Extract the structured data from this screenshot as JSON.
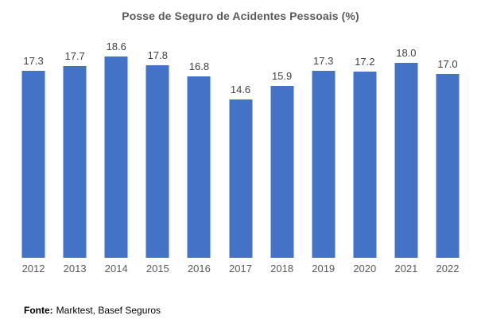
{
  "chart_data": {
    "type": "bar",
    "title": "Posse de Seguro de Acidentes Pessoais (%)",
    "categories": [
      "2012",
      "2013",
      "2014",
      "2015",
      "2016",
      "2017",
      "2018",
      "2019",
      "2020",
      "2021",
      "2022"
    ],
    "values": [
      17.3,
      17.7,
      18.6,
      17.8,
      16.8,
      14.6,
      15.9,
      17.3,
      17.2,
      18.0,
      17.0
    ],
    "value_labels": [
      "17.3",
      "17.7",
      "18.6",
      "17.8",
      "16.8",
      "14.6",
      "15.9",
      "17.3",
      "17.2",
      "18.0",
      "17.0"
    ],
    "xlabel": "",
    "ylabel": "",
    "ylim": [
      0,
      20
    ],
    "grid": false,
    "legend": false,
    "bar_color": "#4472C4",
    "title_color": "#595959",
    "data_label_color": "#404040",
    "axis_label_color": "#595959"
  },
  "source": {
    "label": "Fonte:",
    "text": "Marktest, Basef Seguros"
  }
}
